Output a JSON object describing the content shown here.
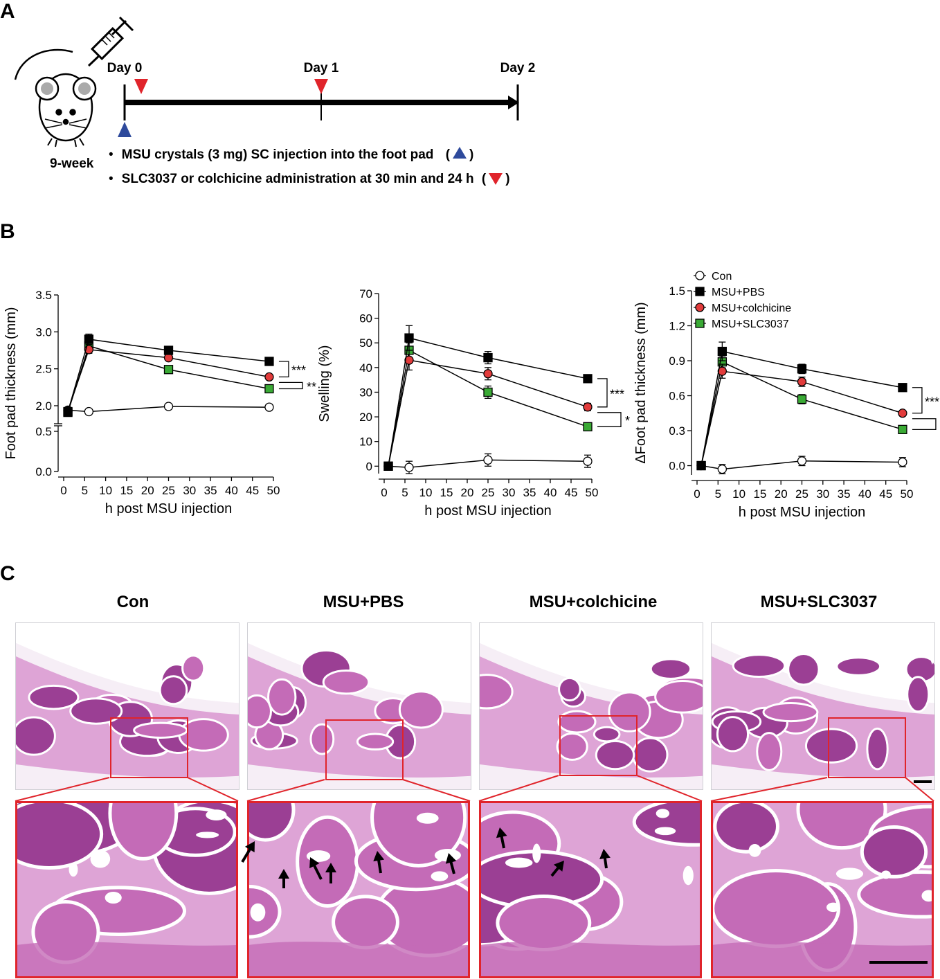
{
  "panels": {
    "a": "A",
    "b": "B",
    "c": "C"
  },
  "timeline": {
    "days": [
      "Day 0",
      "Day 1",
      "Day 2"
    ],
    "mouse_age": "9-week",
    "bullets": [
      "MSU crystals (3 mg) SC injection into the foot pad",
      "SLC3037 or colchicine administration at 30 min and 24 h"
    ],
    "colors": {
      "blue_marker": "#2e4a9c",
      "red_marker": "#e0242b"
    }
  },
  "legend": [
    {
      "name": "Con",
      "marker": "circle",
      "fill": "#ffffff"
    },
    {
      "name": "MSU+PBS",
      "marker": "square",
      "fill": "#000000"
    },
    {
      "name": "MSU+colchicine",
      "marker": "circle",
      "fill": "#e23b3b"
    },
    {
      "name": "MSU+SLC3037",
      "marker": "square",
      "fill": "#3aaa35"
    }
  ],
  "chart_data": [
    {
      "type": "line",
      "ylabel": "Foot pad thickness (mm)",
      "xlabel": "h post MSU injection",
      "x_ticks": [
        0,
        5,
        10,
        15,
        20,
        25,
        30,
        35,
        40,
        45,
        50
      ],
      "y_ticks_upper": [
        "2.0",
        "2.5",
        "3.0",
        "3.5"
      ],
      "y_ticks_lower": [
        "0.0",
        "0.5"
      ],
      "ylim_upper": [
        1.85,
        3.5
      ],
      "ylim_lower": [
        0,
        0.5
      ],
      "broken_axis": true,
      "x": [
        1,
        6,
        25,
        49
      ],
      "series": [
        {
          "name": "Con",
          "values": [
            1.94,
            1.92,
            1.99,
            1.98
          ],
          "err": [
            0.02,
            0.02,
            0.02,
            0.02
          ]
        },
        {
          "name": "MSU+PBS",
          "values": [
            1.92,
            2.9,
            2.75,
            2.6
          ],
          "err": [
            0.02,
            0.07,
            0.03,
            0.03
          ]
        },
        {
          "name": "MSU+colchicine",
          "values": [
            1.93,
            2.76,
            2.65,
            2.39
          ],
          "err": [
            0.02,
            0.05,
            0.03,
            0.02
          ]
        },
        {
          "name": "MSU+SLC3037",
          "values": [
            1.91,
            2.81,
            2.49,
            2.23
          ],
          "err": [
            0.02,
            0.05,
            0.03,
            0.02
          ]
        }
      ],
      "significance": [
        "***",
        "**"
      ]
    },
    {
      "type": "line",
      "ylabel": "Swelling (%)",
      "xlabel": "h post MSU injection",
      "x_ticks": [
        0,
        5,
        10,
        15,
        20,
        25,
        30,
        35,
        40,
        45,
        50
      ],
      "y_ticks": [
        0,
        10,
        20,
        30,
        40,
        50,
        60,
        70
      ],
      "ylim": [
        -3,
        70
      ],
      "x": [
        1,
        6,
        25,
        49
      ],
      "series": [
        {
          "name": "Con",
          "values": [
            0,
            -0.5,
            2.5,
            2
          ],
          "err": [
            0.5,
            2.5,
            2.5,
            2.5
          ]
        },
        {
          "name": "MSU+PBS",
          "values": [
            0,
            52,
            44,
            35.5
          ],
          "err": [
            0.5,
            5,
            2.5,
            1.5
          ]
        },
        {
          "name": "MSU+colchicine",
          "values": [
            0,
            43,
            37.5,
            24
          ],
          "err": [
            0.5,
            4,
            2.5,
            1.5
          ]
        },
        {
          "name": "MSU+SLC3037",
          "values": [
            0,
            47,
            30,
            16
          ],
          "err": [
            0.5,
            3,
            2.5,
            1
          ]
        }
      ],
      "significance": [
        "***",
        "*"
      ]
    },
    {
      "type": "line",
      "ylabel": "ΔFoot pad thickness (mm)",
      "xlabel": "h post MSU injection",
      "x_ticks": [
        0,
        5,
        10,
        15,
        20,
        25,
        30,
        35,
        40,
        45,
        50
      ],
      "y_ticks": [
        "0.0",
        "0.3",
        "0.6",
        "0.9",
        "1.2",
        "1.5"
      ],
      "ylim": [
        -0.08,
        1.5
      ],
      "x": [
        1,
        6,
        25,
        49
      ],
      "series": [
        {
          "name": "Con",
          "values": [
            0,
            -0.03,
            0.04,
            0.03
          ],
          "err": [
            0.01,
            0.04,
            0.04,
            0.04
          ]
        },
        {
          "name": "MSU+PBS",
          "values": [
            0,
            0.98,
            0.83,
            0.67
          ],
          "err": [
            0.01,
            0.08,
            0.04,
            0.02
          ]
        },
        {
          "name": "MSU+colchicine",
          "values": [
            0,
            0.81,
            0.72,
            0.45
          ],
          "err": [
            0.01,
            0.06,
            0.04,
            0.02
          ]
        },
        {
          "name": "MSU+SLC3037",
          "values": [
            0,
            0.89,
            0.57,
            0.31
          ],
          "err": [
            0.01,
            0.05,
            0.04,
            0.02
          ]
        }
      ],
      "significance": [
        "***",
        "*"
      ]
    }
  ],
  "histology": {
    "groups": [
      "Con",
      "MSU+PBS",
      "MSU+colchicine",
      "MSU+SLC3037"
    ],
    "colors": {
      "tissue_dark": "#9b3f94",
      "tissue_mid": "#c46bb7",
      "tissue_light": "#dea4d6",
      "background": "#f6eef6",
      "highlight": "#e0242b"
    }
  }
}
